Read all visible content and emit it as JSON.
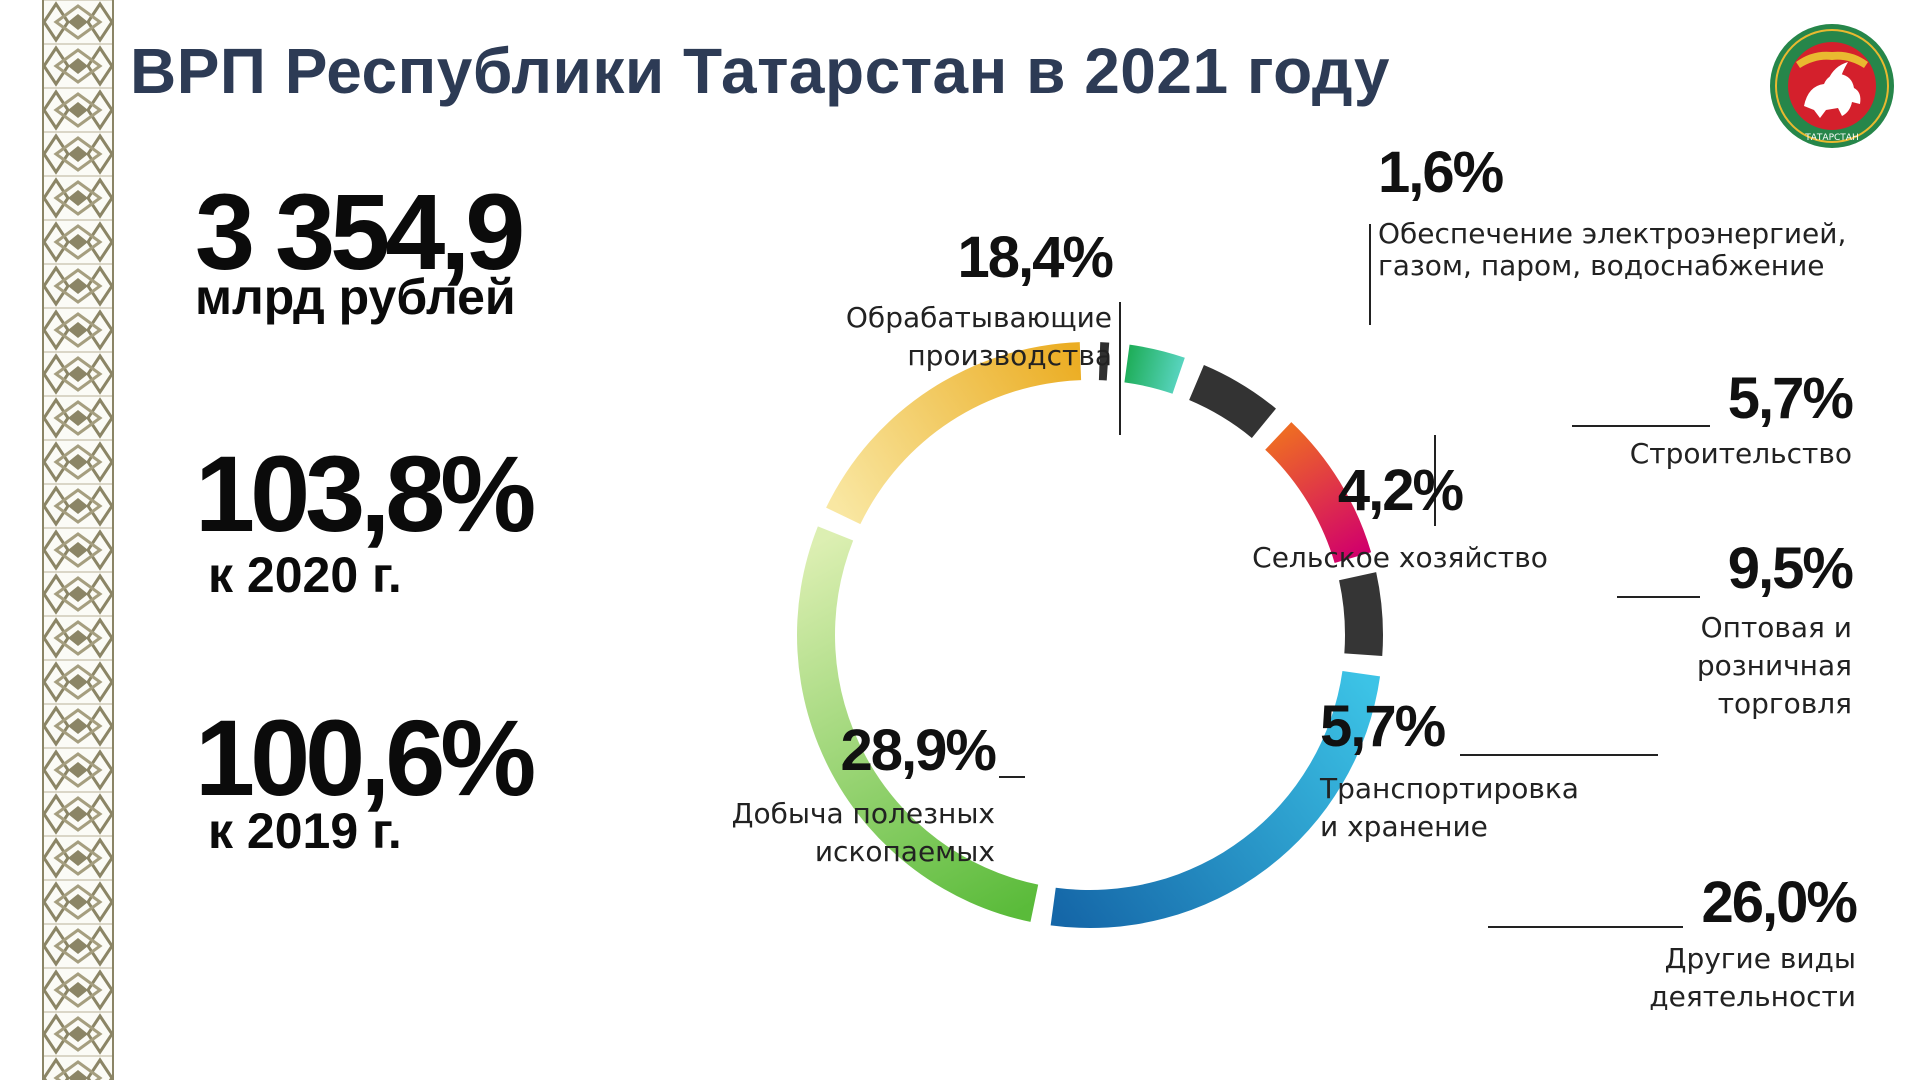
{
  "title": "ВРП Республики Татарстан в 2021 году",
  "emblem": {
    "icon": "tatarstan-emblem-icon",
    "text": "ТАТАРСТАН"
  },
  "stats": [
    {
      "value": "3 354,9",
      "label": "млрд рублей"
    },
    {
      "value": "103,8%",
      "label": "к 2020 г."
    },
    {
      "value": "100,6%",
      "label": "к 2019 г."
    }
  ],
  "chart_data": {
    "type": "pie",
    "title": "",
    "series": [
      {
        "label": "Обеспечение электроэнергией, газом, паром, водоснабжение",
        "value": 1.6,
        "pct_label": "1,6%",
        "label_lines": [
          "Обеспечение электроэнергией,",
          "газом, паром, водоснабжение"
        ],
        "colors": [
          "#303030",
          "#303030"
        ]
      },
      {
        "label": "Сельское хозяйство",
        "value": 4.2,
        "pct_label": "4,2%",
        "label_lines": [
          "Сельское хозяйство"
        ],
        "colors": [
          "#1fae5a",
          "#57d3bd"
        ]
      },
      {
        "label": "Строительство",
        "value": 5.7,
        "pct_label": "5,7%",
        "label_lines": [
          "Строительство"
        ],
        "colors": [
          "#333333",
          "#333333"
        ]
      },
      {
        "label": "Оптовая и розничная торговля",
        "value": 9.5,
        "pct_label": "9,5%",
        "label_lines": [
          "Оптовая и",
          "розничная",
          "торговля"
        ],
        "colors": [
          "#ee6b24",
          "#d1006b"
        ]
      },
      {
        "label": "Транспортировка и хранение",
        "value": 5.7,
        "pct_label": "5,7%",
        "label_lines": [
          "Транспортировка",
          "и хранение"
        ],
        "colors": [
          "#353535",
          "#353535"
        ]
      },
      {
        "label": "Другие виды деятельности",
        "value": 26.0,
        "pct_label": "26,0%",
        "label_lines": [
          "Другие виды",
          "деятельности"
        ],
        "colors": [
          "#3cc3e6",
          "#1567a8"
        ]
      },
      {
        "label": "Добыча полезных ископаемых",
        "value": 28.9,
        "pct_label": "28,9%",
        "label_lines": [
          "Добыча полезных",
          "ископаемых"
        ],
        "colors": [
          "#5abb3a",
          "#dcefb2"
        ]
      },
      {
        "label": "Обрабатывающие производства",
        "value": 18.4,
        "pct_label": "18,4%",
        "label_lines": [
          "Обрабатывающие",
          "производства"
        ],
        "colors": [
          "#f9e7a2",
          "#ebad23"
        ]
      }
    ],
    "colors": {
      "title": "#2d3b55",
      "ornament": "#8b8566",
      "emblem_ring": "#26864a",
      "emblem_field": "#d4202c",
      "emblem_accent": "#e9b930"
    }
  }
}
